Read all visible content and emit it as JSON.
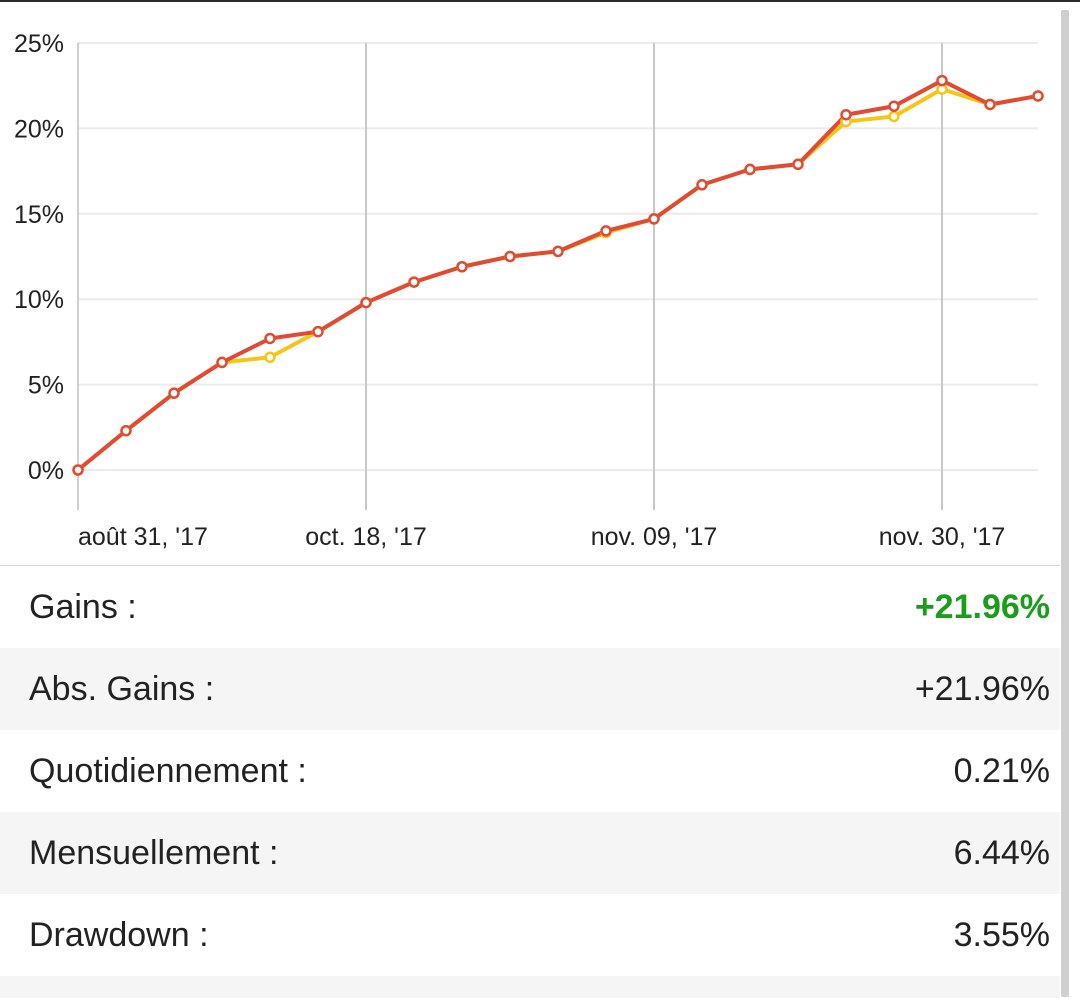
{
  "chart_data": {
    "type": "line",
    "x_tick_labels": [
      "août 31, '17",
      "oct. 18, '17",
      "nov. 09, '17",
      "nov. 30, '17"
    ],
    "x_tick_positions": [
      0,
      6,
      12,
      18
    ],
    "y_tick_labels": [
      "25%",
      "20%",
      "15%",
      "10%",
      "5%",
      "0%"
    ],
    "ylim": [
      0,
      25
    ],
    "y_unit": "%",
    "grid": true,
    "series": [
      {
        "color": "#f5c518",
        "values": [
          0.0,
          2.3,
          4.5,
          6.3,
          6.6,
          8.1,
          9.8,
          11.0,
          11.9,
          12.5,
          12.8,
          13.9,
          14.7,
          16.7,
          17.6,
          17.9,
          20.4,
          20.7,
          22.3,
          21.4,
          21.9
        ]
      },
      {
        "color": "#e14b33",
        "values": [
          0.0,
          2.3,
          4.5,
          6.3,
          7.7,
          8.1,
          9.8,
          11.0,
          11.9,
          12.5,
          12.8,
          14.0,
          14.7,
          16.7,
          17.6,
          17.9,
          20.8,
          21.3,
          22.8,
          21.4,
          21.9
        ]
      }
    ]
  },
  "stats": [
    {
      "label": "Gains :",
      "value": "+21.96%",
      "positive": true
    },
    {
      "label": "Abs. Gains :",
      "value": "+21.96%",
      "positive": false
    },
    {
      "label": "Quotidiennement :",
      "value": "0.21%",
      "positive": false
    },
    {
      "label": "Mensuellement :",
      "value": "6.44%",
      "positive": false
    },
    {
      "label": "Drawdown :",
      "value": "3.55%",
      "positive": false
    }
  ],
  "colors": {
    "positive": "#1a9e1a",
    "grid": "#ebebeb",
    "major_grid": "#c8c8c8"
  }
}
